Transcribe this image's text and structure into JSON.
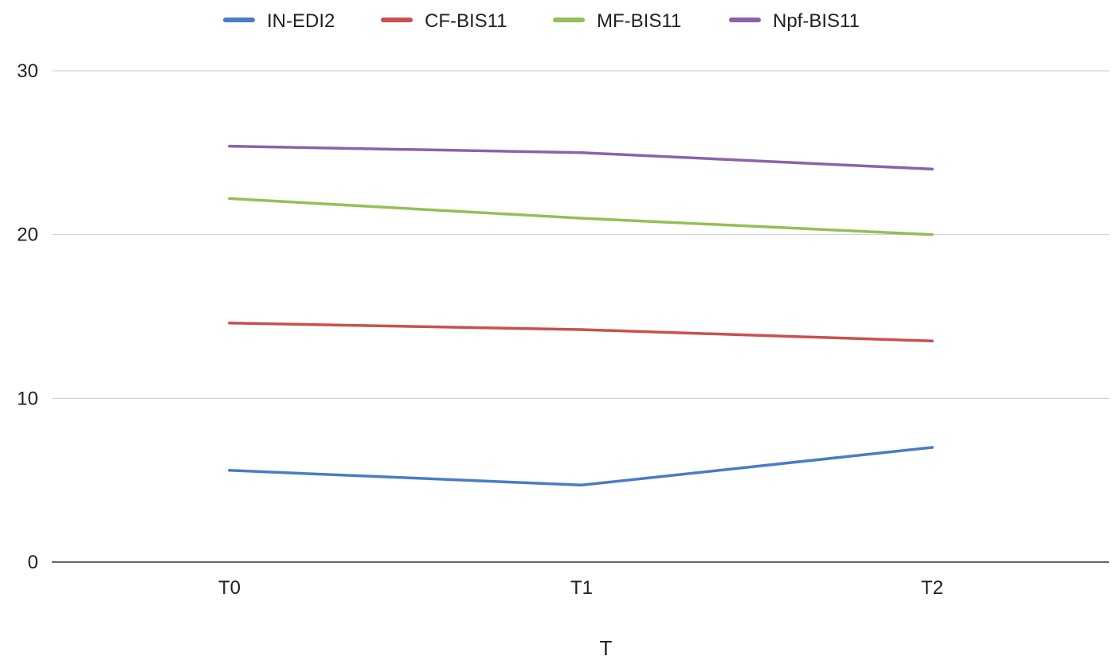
{
  "chart_data": {
    "type": "line",
    "categories": [
      "T0",
      "T1",
      "T2"
    ],
    "series": [
      {
        "name": "IN-EDI2",
        "color": "#4a7cc7",
        "values": [
          5.6,
          4.7,
          7.0
        ]
      },
      {
        "name": "CF-BIS11",
        "color": "#c9504f",
        "values": [
          14.6,
          14.2,
          13.5
        ]
      },
      {
        "name": "MF-BIS11",
        "color": "#96be57",
        "values": [
          22.2,
          21.0,
          20.0
        ]
      },
      {
        "name": "Npf-BIS11",
        "color": "#8a62ad",
        "values": [
          25.4,
          25.0,
          24.0
        ]
      }
    ],
    "title": "",
    "xlabel": "T",
    "ylabel": "",
    "ylim": [
      0,
      30
    ],
    "yticks": [
      "0",
      "10",
      "20",
      "30"
    ],
    "grid": true,
    "legend_position": "top"
  }
}
